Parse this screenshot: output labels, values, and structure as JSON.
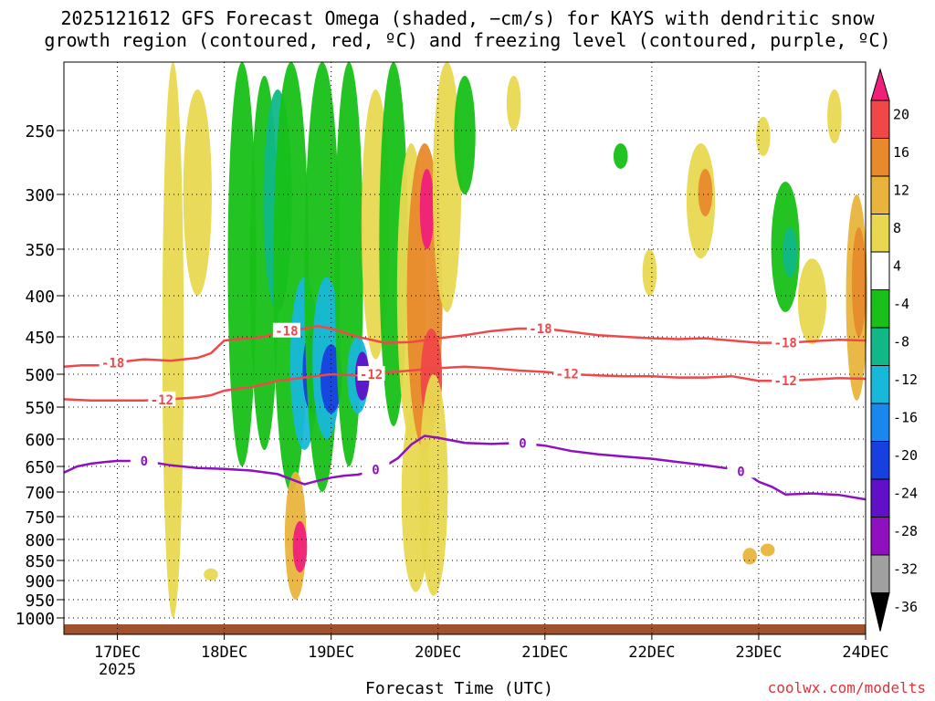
{
  "chart_data": {
    "type": "heatmap",
    "title_lines": [
      "2025121612 GFS Forecast Omega (shaded, −cm/s) for KAYS with dendritic snow",
      "growth region (contoured, red, ºC) and freezing level (contoured, purple, ºC)"
    ],
    "xlabel": "Forecast Time (UTC)",
    "credit": "coolwx.com/modelts",
    "x_range_hours": [
      -12,
      168
    ],
    "x_ticks": [
      {
        "hours": 0,
        "label": "17DEC",
        "sub": "2025"
      },
      {
        "hours": 24,
        "label": "18DEC",
        "sub": ""
      },
      {
        "hours": 48,
        "label": "19DEC",
        "sub": ""
      },
      {
        "hours": 72,
        "label": "20DEC",
        "sub": ""
      },
      {
        "hours": 96,
        "label": "21DEC",
        "sub": ""
      },
      {
        "hours": 120,
        "label": "22DEC",
        "sub": ""
      },
      {
        "hours": 144,
        "label": "23DEC",
        "sub": ""
      },
      {
        "hours": 168,
        "label": "24DEC",
        "sub": ""
      }
    ],
    "y_ticks": [
      "250",
      "300",
      "350",
      "400",
      "450",
      "500",
      "550",
      "600",
      "650",
      "700",
      "750",
      "800",
      "850",
      "900",
      "950",
      "1000"
    ],
    "y_range_hpa": [
      200,
      1020
    ],
    "colorbar": {
      "labels": [
        "20",
        "16",
        "12",
        "8",
        "4",
        "-4",
        "-8",
        "-12",
        "-16",
        "-20",
        "-24",
        "-28",
        "-32",
        "-36"
      ],
      "colors": [
        "#f0207a",
        "#f04848",
        "#e88a2c",
        "#e8b43c",
        "#e8d850",
        "#ffffff",
        "#18c018",
        "#10b888",
        "#18b8d8",
        "#1888f0",
        "#1840e0",
        "#6010c8",
        "#9010c0",
        "#a0a0a0",
        "#000000"
      ]
    },
    "contours": {
      "dgz_minus18": {
        "label": "-18",
        "color": "#f04848",
        "points": [
          [
            -12,
            490
          ],
          [
            -8,
            488
          ],
          [
            -4,
            488
          ],
          [
            0,
            484
          ],
          [
            6,
            480
          ],
          [
            12,
            482
          ],
          [
            18,
            478
          ],
          [
            21,
            472
          ],
          [
            24,
            455
          ],
          [
            27,
            453
          ],
          [
            30,
            452
          ],
          [
            33,
            450
          ],
          [
            36,
            445
          ],
          [
            39,
            442
          ],
          [
            42,
            440
          ],
          [
            45,
            437
          ],
          [
            48,
            440
          ],
          [
            51,
            445
          ],
          [
            54,
            450
          ],
          [
            60,
            458
          ],
          [
            66,
            457
          ],
          [
            72,
            452
          ],
          [
            78,
            448
          ],
          [
            84,
            443
          ],
          [
            90,
            440
          ],
          [
            96,
            440
          ],
          [
            102,
            444
          ],
          [
            108,
            448
          ],
          [
            114,
            450
          ],
          [
            120,
            452
          ],
          [
            126,
            453
          ],
          [
            132,
            452
          ],
          [
            138,
            455
          ],
          [
            144,
            458
          ],
          [
            150,
            458
          ],
          [
            156,
            456
          ],
          [
            162,
            454
          ],
          [
            168,
            455
          ]
        ]
      },
      "dgz_minus12": {
        "label": "-12",
        "color": "#f04848",
        "points": [
          [
            -12,
            538
          ],
          [
            -6,
            540
          ],
          [
            0,
            540
          ],
          [
            6,
            540
          ],
          [
            12,
            538
          ],
          [
            18,
            535
          ],
          [
            21,
            532
          ],
          [
            24,
            525
          ],
          [
            27,
            522
          ],
          [
            30,
            520
          ],
          [
            36,
            510
          ],
          [
            42,
            505
          ],
          [
            48,
            500
          ],
          [
            54,
            502
          ],
          [
            60,
            498
          ],
          [
            66,
            495
          ],
          [
            72,
            492
          ],
          [
            78,
            490
          ],
          [
            84,
            492
          ],
          [
            90,
            495
          ],
          [
            96,
            497
          ],
          [
            102,
            500
          ],
          [
            108,
            502
          ],
          [
            114,
            503
          ],
          [
            120,
            503
          ],
          [
            126,
            505
          ],
          [
            132,
            505
          ],
          [
            138,
            503
          ],
          [
            144,
            510
          ],
          [
            150,
            510
          ],
          [
            156,
            508
          ],
          [
            162,
            506
          ],
          [
            168,
            507
          ]
        ]
      },
      "freezing_0": {
        "label": "0",
        "color": "#9010c0",
        "points": [
          [
            -12,
            662
          ],
          [
            -9,
            650
          ],
          [
            -6,
            645
          ],
          [
            -3,
            642
          ],
          [
            0,
            640
          ],
          [
            6,
            640
          ],
          [
            12,
            648
          ],
          [
            18,
            653
          ],
          [
            24,
            655
          ],
          [
            30,
            658
          ],
          [
            36,
            665
          ],
          [
            39,
            675
          ],
          [
            42,
            685
          ],
          [
            45,
            678
          ],
          [
            48,
            672
          ],
          [
            51,
            668
          ],
          [
            54,
            666
          ],
          [
            57,
            660
          ],
          [
            60,
            650
          ],
          [
            63,
            635
          ],
          [
            66,
            610
          ],
          [
            69,
            595
          ],
          [
            72,
            598
          ],
          [
            78,
            607
          ],
          [
            84,
            609
          ],
          [
            90,
            607
          ],
          [
            96,
            612
          ],
          [
            102,
            622
          ],
          [
            108,
            628
          ],
          [
            114,
            632
          ],
          [
            120,
            636
          ],
          [
            126,
            642
          ],
          [
            132,
            648
          ],
          [
            138,
            655
          ],
          [
            141,
            662
          ],
          [
            144,
            680
          ],
          [
            147,
            690
          ],
          [
            150,
            705
          ],
          [
            156,
            703
          ],
          [
            162,
            706
          ],
          [
            168,
            715
          ]
        ]
      }
    },
    "contour_labels": [
      {
        "contour": "dgz_minus18",
        "text": "-18",
        "at_hours": -1
      },
      {
        "contour": "dgz_minus18",
        "text": "-18",
        "at_hours": 38
      },
      {
        "contour": "dgz_minus18",
        "text": "-18",
        "at_hours": 95
      },
      {
        "contour": "dgz_minus18",
        "text": "-18",
        "at_hours": 150
      },
      {
        "contour": "dgz_minus12",
        "text": "-12",
        "at_hours": 10
      },
      {
        "contour": "dgz_minus12",
        "text": "-12",
        "at_hours": 57
      },
      {
        "contour": "dgz_minus12",
        "text": "-12",
        "at_hours": 101
      },
      {
        "contour": "dgz_minus12",
        "text": "-12",
        "at_hours": 150
      },
      {
        "contour": "freezing_0",
        "text": "0",
        "at_hours": 6
      },
      {
        "contour": "freezing_0",
        "text": "0",
        "at_hours": 58
      },
      {
        "contour": "freezing_0",
        "text": "0",
        "at_hours": 91
      },
      {
        "contour": "freezing_0",
        "text": "0",
        "at_hours": 140
      }
    ],
    "omega_features": [
      {
        "hours": 12.5,
        "p_top": 200,
        "p_bot": 1000,
        "w": 1.5,
        "level": 4
      },
      {
        "hours": 18,
        "p_top": 220,
        "p_bot": 400,
        "w": 2,
        "level": 4
      },
      {
        "hours": 28,
        "p_top": 200,
        "p_bot": 650,
        "w": 2,
        "level": -8
      },
      {
        "hours": 33,
        "p_top": 210,
        "p_bot": 620,
        "w": 2,
        "level": -8
      },
      {
        "hours": 36,
        "p_top": 220,
        "p_bot": 420,
        "w": 2,
        "level": -12
      },
      {
        "hours": 39,
        "p_top": 200,
        "p_bot": 700,
        "w": 2.5,
        "level": -8
      },
      {
        "hours": 42,
        "p_top": 380,
        "p_bot": 620,
        "w": 2,
        "level": -16
      },
      {
        "hours": 44,
        "p_top": 440,
        "p_bot": 560,
        "w": 1.5,
        "level": -24
      },
      {
        "hours": 40,
        "p_top": 660,
        "p_bot": 950,
        "w": 1.5,
        "level": 8
      },
      {
        "hours": 41,
        "p_top": 760,
        "p_bot": 880,
        "w": 1,
        "level": 20
      },
      {
        "hours": 46,
        "p_top": 200,
        "p_bot": 700,
        "w": 2.5,
        "level": -8
      },
      {
        "hours": 47,
        "p_top": 380,
        "p_bot": 600,
        "w": 2,
        "level": -16
      },
      {
        "hours": 48,
        "p_top": 460,
        "p_bot": 560,
        "w": 1.5,
        "level": -24
      },
      {
        "hours": 52,
        "p_top": 200,
        "p_bot": 650,
        "w": 2,
        "level": -8
      },
      {
        "hours": 54,
        "p_top": 450,
        "p_bot": 560,
        "w": 1.5,
        "level": -16
      },
      {
        "hours": 55,
        "p_top": 470,
        "p_bot": 540,
        "w": 1,
        "level": -28
      },
      {
        "hours": 58,
        "p_top": 220,
        "p_bot": 480,
        "w": 2,
        "level": 4
      },
      {
        "hours": 62,
        "p_top": 200,
        "p_bot": 580,
        "w": 2,
        "level": -8
      },
      {
        "hours": 66,
        "p_top": 260,
        "p_bot": 600,
        "w": 2,
        "level": 4
      },
      {
        "hours": 67,
        "p_top": 540,
        "p_bot": 930,
        "w": 2,
        "level": 4
      },
      {
        "hours": 69,
        "p_top": 260,
        "p_bot": 620,
        "w": 2.5,
        "level": 12
      },
      {
        "hours": 69.5,
        "p_top": 280,
        "p_bot": 350,
        "w": 1,
        "level": 20
      },
      {
        "hours": 70.5,
        "p_top": 440,
        "p_bot": 580,
        "w": 1.5,
        "level": 16
      },
      {
        "hours": 71,
        "p_top": 500,
        "p_bot": 940,
        "w": 2,
        "level": 4
      },
      {
        "hours": 74,
        "p_top": 200,
        "p_bot": 420,
        "w": 2,
        "level": 4
      },
      {
        "hours": 78,
        "p_top": 210,
        "p_bot": 300,
        "w": 1.5,
        "level": -8
      },
      {
        "hours": 89,
        "p_top": 210,
        "p_bot": 250,
        "w": 1,
        "level": 4
      },
      {
        "hours": 113,
        "p_top": 260,
        "p_bot": 280,
        "w": 1,
        "level": -8
      },
      {
        "hours": 131,
        "p_top": 260,
        "p_bot": 360,
        "w": 2,
        "level": 4
      },
      {
        "hours": 132,
        "p_top": 280,
        "p_bot": 320,
        "w": 1,
        "level": 12
      },
      {
        "hours": 119.5,
        "p_top": 350,
        "p_bot": 400,
        "w": 1,
        "level": 4
      },
      {
        "hours": 145,
        "p_top": 240,
        "p_bot": 270,
        "w": 1,
        "level": 4
      },
      {
        "hours": 150,
        "p_top": 290,
        "p_bot": 420,
        "w": 2,
        "level": -8
      },
      {
        "hours": 151,
        "p_top": 330,
        "p_bot": 380,
        "w": 1,
        "level": -12
      },
      {
        "hours": 156,
        "p_top": 360,
        "p_bot": 460,
        "w": 2,
        "level": 4
      },
      {
        "hours": 161,
        "p_top": 220,
        "p_bot": 260,
        "w": 1,
        "level": 4
      },
      {
        "hours": 166,
        "p_top": 300,
        "p_bot": 540,
        "w": 1.5,
        "level": 8
      },
      {
        "hours": 166.5,
        "p_top": 330,
        "p_bot": 450,
        "w": 1,
        "level": 12
      },
      {
        "hours": 142,
        "p_top": 820,
        "p_bot": 860,
        "w": 1,
        "level": 8
      },
      {
        "hours": 146,
        "p_top": 810,
        "p_bot": 840,
        "w": 1,
        "level": 8
      },
      {
        "hours": 21,
        "p_top": 870,
        "p_bot": 900,
        "w": 1,
        "level": 4
      }
    ]
  }
}
